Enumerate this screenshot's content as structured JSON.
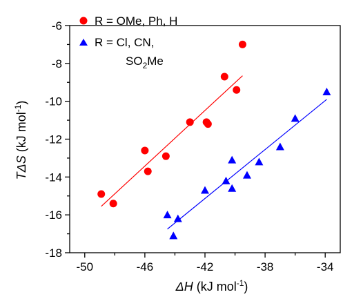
{
  "chart_data": {
    "type": "scatter",
    "xlabel": {
      "italic": "ΔH",
      "rest": " (kJ mol",
      "sup": "-1",
      "close": ")"
    },
    "ylabel": {
      "italic": "TΔS",
      "rest": " (kJ mol",
      "sup": "-1",
      "close": ")"
    },
    "xlim": [
      -51,
      -33
    ],
    "ylim": [
      -18,
      -6
    ],
    "xticks": [
      -50,
      -46,
      -42,
      -38,
      -34
    ],
    "yticks": [
      -18,
      -16,
      -14,
      -12,
      -10,
      -8,
      -6
    ],
    "grid": false,
    "legend_position": "top-left",
    "series": [
      {
        "name": "R = OMe, Ph, H",
        "marker": "circle",
        "color": "#ff0000",
        "points": [
          [
            -48.9,
            -14.9
          ],
          [
            -48.1,
            -15.4
          ],
          [
            -46.0,
            -12.6
          ],
          [
            -45.8,
            -13.7
          ],
          [
            -44.6,
            -12.9
          ],
          [
            -43.0,
            -11.1
          ],
          [
            -41.9,
            -11.1
          ],
          [
            -41.8,
            -11.2
          ],
          [
            -40.7,
            -8.7
          ],
          [
            -39.9,
            -9.4
          ],
          [
            -39.5,
            -7.0
          ]
        ],
        "fit": [
          [
            -48.9,
            -15.55
          ],
          [
            -39.5,
            -8.65
          ]
        ]
      },
      {
        "name_lines": [
          "R = Cl, CN,",
          "SO2Me"
        ],
        "marker": "triangle",
        "color": "#0000ff",
        "points": [
          [
            -44.5,
            -16.0
          ],
          [
            -44.1,
            -17.1
          ],
          [
            -43.8,
            -16.2
          ],
          [
            -42.0,
            -14.7
          ],
          [
            -40.6,
            -14.2
          ],
          [
            -40.2,
            -13.1
          ],
          [
            -40.2,
            -14.6
          ],
          [
            -39.2,
            -13.9
          ],
          [
            -38.4,
            -13.2
          ],
          [
            -37.0,
            -12.4
          ],
          [
            -36.0,
            -10.9
          ],
          [
            -33.9,
            -9.5
          ]
        ],
        "fit": [
          [
            -44.5,
            -16.75
          ],
          [
            -33.9,
            -9.9
          ]
        ]
      }
    ]
  }
}
